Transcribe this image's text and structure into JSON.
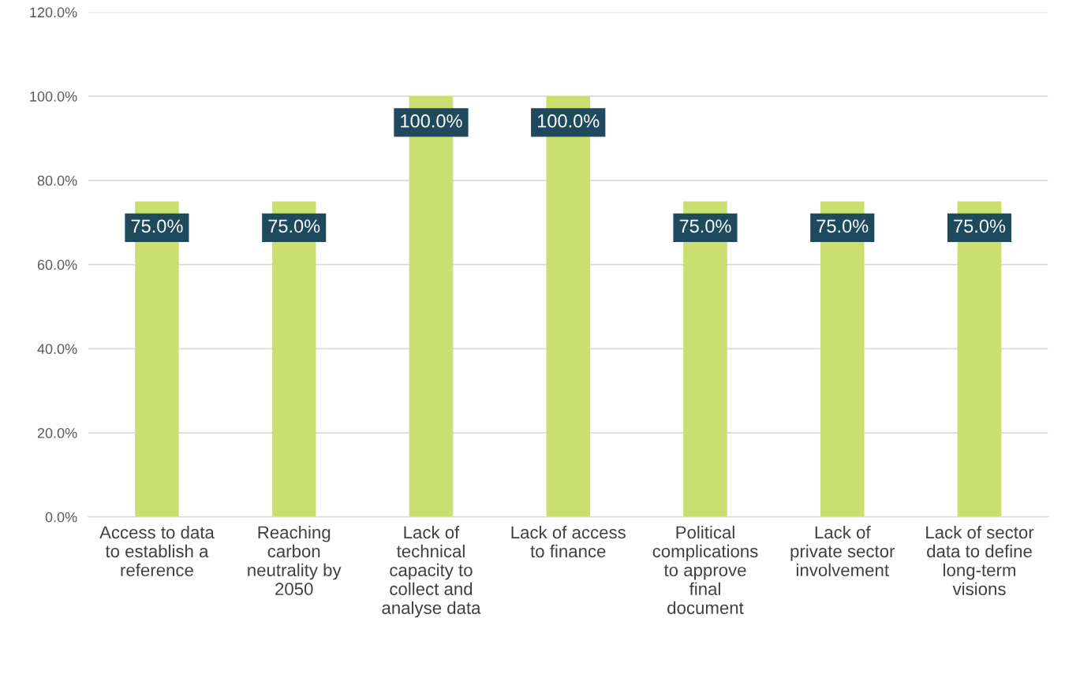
{
  "chart_data": {
    "type": "bar",
    "categories": [
      "Access to data\nto establish a\nreference",
      "Reaching\ncarbon\nneutrality by\n2050",
      "Lack of\ntechnical\ncapacity to\ncollect and\nanalyse data",
      "Lack of access\nto finance",
      "Political\ncomplications\nto approve\nfinal\ndocument",
      "Lack of\nprivate sector\ninvolvement",
      "Lack of sector\ndata to define\nlong-term\nvisions"
    ],
    "values": [
      75,
      75,
      100,
      100,
      75,
      75,
      75
    ],
    "value_labels": [
      "75.0%",
      "75.0%",
      "100.0%",
      "100.0%",
      "75.0%",
      "75.0%",
      "75.0%"
    ],
    "color": "#cadf70",
    "ylim": [
      0,
      120
    ],
    "yticks": [
      {
        "value": 0,
        "label": "0.0%"
      },
      {
        "value": 20,
        "label": "20.0%"
      },
      {
        "value": 40,
        "label": "40.0%"
      },
      {
        "value": 60,
        "label": "60.0%"
      },
      {
        "value": 80,
        "label": "80.0%"
      },
      {
        "value": 100,
        "label": "100.0%"
      },
      {
        "value": 120,
        "label": "120.0%"
      }
    ],
    "grid": "y",
    "legend": false
  }
}
